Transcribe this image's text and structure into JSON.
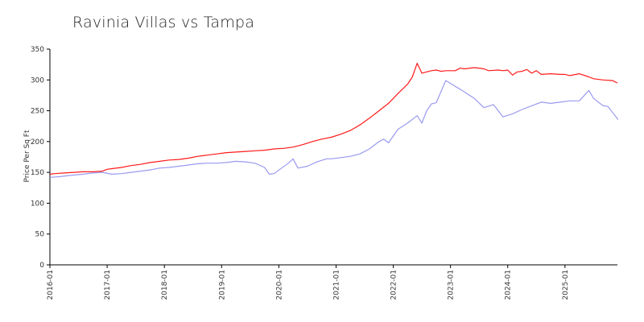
{
  "chart_data": {
    "type": "line",
    "title": "Ravinia Villas vs Tampa",
    "xlabel": "",
    "ylabel": "Price Per Sq Ft",
    "ylim": [
      0,
      350
    ],
    "xlim": [
      "2016-01",
      "2025-12"
    ],
    "grid": false,
    "yticks": [
      0,
      50,
      100,
      150,
      200,
      250,
      300,
      350
    ],
    "xticks": [
      "2016-01",
      "2017-01",
      "2018-01",
      "2019-01",
      "2020-01",
      "2021-01",
      "2022-01",
      "2023-01",
      "2024-01",
      "2025-01"
    ],
    "series": [
      {
        "color": "#ff1a1a",
        "points": [
          [
            "2016-01",
            147
          ],
          [
            "2016-02",
            148
          ],
          [
            "2016-04",
            149
          ],
          [
            "2016-06",
            150
          ],
          [
            "2016-08",
            151
          ],
          [
            "2016-10",
            151
          ],
          [
            "2016-12",
            152
          ],
          [
            "2017-01",
            155
          ],
          [
            "2017-02",
            156
          ],
          [
            "2017-04",
            158
          ],
          [
            "2017-06",
            161
          ],
          [
            "2017-08",
            163
          ],
          [
            "2017-10",
            166
          ],
          [
            "2017-12",
            168
          ],
          [
            "2018-02",
            170
          ],
          [
            "2018-04",
            171
          ],
          [
            "2018-06",
            173
          ],
          [
            "2018-08",
            176
          ],
          [
            "2018-10",
            178
          ],
          [
            "2018-12",
            180
          ],
          [
            "2019-02",
            182
          ],
          [
            "2019-04",
            183
          ],
          [
            "2019-06",
            184
          ],
          [
            "2019-08",
            185
          ],
          [
            "2019-10",
            186
          ],
          [
            "2019-12",
            188
          ],
          [
            "2020-02",
            189
          ],
          [
            "2020-04",
            191
          ],
          [
            "2020-06",
            195
          ],
          [
            "2020-08",
            200
          ],
          [
            "2020-10",
            204
          ],
          [
            "2020-12",
            207
          ],
          [
            "2021-02",
            212
          ],
          [
            "2021-04",
            218
          ],
          [
            "2021-06",
            227
          ],
          [
            "2021-08",
            238
          ],
          [
            "2021-10",
            250
          ],
          [
            "2021-12",
            262
          ],
          [
            "2022-02",
            278
          ],
          [
            "2022-04",
            293
          ],
          [
            "2022-05",
            305
          ],
          [
            "2022-06",
            327
          ],
          [
            "2022-07",
            311
          ],
          [
            "2022-08",
            313
          ],
          [
            "2022-09",
            315
          ],
          [
            "2022-10",
            316
          ],
          [
            "2022-11",
            314
          ],
          [
            "2022-12",
            315
          ],
          [
            "2023-02",
            315
          ],
          [
            "2023-03",
            319
          ],
          [
            "2023-04",
            318
          ],
          [
            "2023-06",
            320
          ],
          [
            "2023-08",
            318
          ],
          [
            "2023-09",
            315
          ],
          [
            "2023-11",
            316
          ],
          [
            "2023-12",
            315
          ],
          [
            "2024-01",
            316
          ],
          [
            "2024-02",
            308
          ],
          [
            "2024-03",
            313
          ],
          [
            "2024-04",
            314
          ],
          [
            "2024-05",
            317
          ],
          [
            "2024-06",
            311
          ],
          [
            "2024-07",
            315
          ],
          [
            "2024-08",
            309
          ],
          [
            "2024-10",
            310
          ],
          [
            "2024-12",
            309
          ],
          [
            "2025-01",
            309
          ],
          [
            "2025-02",
            307
          ],
          [
            "2025-04",
            310
          ],
          [
            "2025-06",
            305
          ],
          [
            "2025-07",
            302
          ],
          [
            "2025-09",
            300
          ],
          [
            "2025-11",
            299
          ],
          [
            "2025-12",
            295
          ]
        ]
      },
      {
        "color": "#9a9af0",
        "points": [
          [
            "2016-01",
            142
          ],
          [
            "2016-03",
            143
          ],
          [
            "2016-05",
            145
          ],
          [
            "2016-08",
            147
          ],
          [
            "2016-10",
            149
          ],
          [
            "2016-12",
            150
          ],
          [
            "2017-02",
            147
          ],
          [
            "2017-04",
            148
          ],
          [
            "2017-06",
            150
          ],
          [
            "2017-08",
            152
          ],
          [
            "2017-10",
            154
          ],
          [
            "2017-12",
            157
          ],
          [
            "2018-02",
            158
          ],
          [
            "2018-04",
            160
          ],
          [
            "2018-06",
            162
          ],
          [
            "2018-08",
            164
          ],
          [
            "2018-10",
            165
          ],
          [
            "2018-12",
            165
          ],
          [
            "2019-02",
            166
          ],
          [
            "2019-04",
            168
          ],
          [
            "2019-06",
            167
          ],
          [
            "2019-08",
            165
          ],
          [
            "2019-10",
            158
          ],
          [
            "2019-11",
            147
          ],
          [
            "2019-12",
            148
          ],
          [
            "2020-03",
            165
          ],
          [
            "2020-04",
            172
          ],
          [
            "2020-05",
            157
          ],
          [
            "2020-07",
            160
          ],
          [
            "2020-09",
            167
          ],
          [
            "2020-11",
            172
          ],
          [
            "2020-12",
            172
          ],
          [
            "2021-02",
            174
          ],
          [
            "2021-04",
            176
          ],
          [
            "2021-06",
            180
          ],
          [
            "2021-08",
            188
          ],
          [
            "2021-10",
            200
          ],
          [
            "2021-11",
            204
          ],
          [
            "2021-12",
            198
          ],
          [
            "2022-02",
            220
          ],
          [
            "2022-04",
            230
          ],
          [
            "2022-06",
            242
          ],
          [
            "2022-07",
            230
          ],
          [
            "2022-08",
            250
          ],
          [
            "2022-09",
            261
          ],
          [
            "2022-10",
            263
          ],
          [
            "2022-12",
            299
          ],
          [
            "2023-03",
            285
          ],
          [
            "2023-06",
            270
          ],
          [
            "2023-08",
            255
          ],
          [
            "2023-10",
            260
          ],
          [
            "2023-12",
            240
          ],
          [
            "2024-02",
            245
          ],
          [
            "2024-04",
            252
          ],
          [
            "2024-06",
            258
          ],
          [
            "2024-08",
            264
          ],
          [
            "2024-10",
            262
          ],
          [
            "2024-12",
            264
          ],
          [
            "2025-02",
            266
          ],
          [
            "2025-04",
            266
          ],
          [
            "2025-06",
            283
          ],
          [
            "2025-07",
            270
          ],
          [
            "2025-09",
            258
          ],
          [
            "2025-10",
            257
          ],
          [
            "2025-12",
            237
          ],
          [
            "2026-02",
            220
          ]
        ]
      }
    ]
  }
}
